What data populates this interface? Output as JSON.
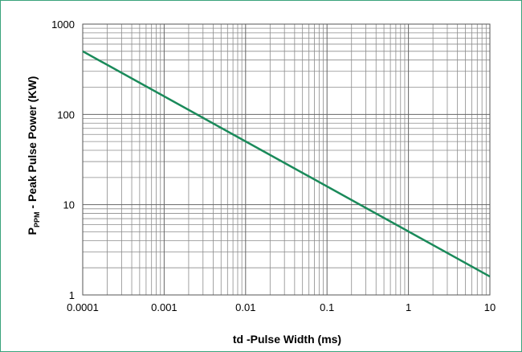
{
  "chart_data": {
    "type": "line",
    "title": "",
    "xlabel": "td -Pulse Width (ms)",
    "ylabel": {
      "main": "P",
      "subscript": "PPM",
      "rest": " - Peak Pulse Power (KW)"
    },
    "x_scale": "log",
    "y_scale": "log",
    "xlim": [
      0.0001,
      10
    ],
    "ylim": [
      1,
      1000
    ],
    "x_ticks": [
      0.0001,
      0.001,
      0.01,
      0.1,
      1,
      10
    ],
    "x_tick_labels": [
      "0.0001",
      "0.001",
      "0.01",
      "0.1",
      "1",
      "10"
    ],
    "y_ticks": [
      1,
      10,
      100,
      1000
    ],
    "y_tick_labels": [
      "1",
      "10",
      "100",
      "1000"
    ],
    "grid": true,
    "legend": "none",
    "series": [
      {
        "color": "#1a8a5a",
        "x": [
          0.0001,
          10
        ],
        "y": [
          500,
          1.6
        ]
      }
    ]
  },
  "colors": {
    "frame": "#3aa37c",
    "grid": "#8c8c8c",
    "line": "#1a8a5a"
  }
}
